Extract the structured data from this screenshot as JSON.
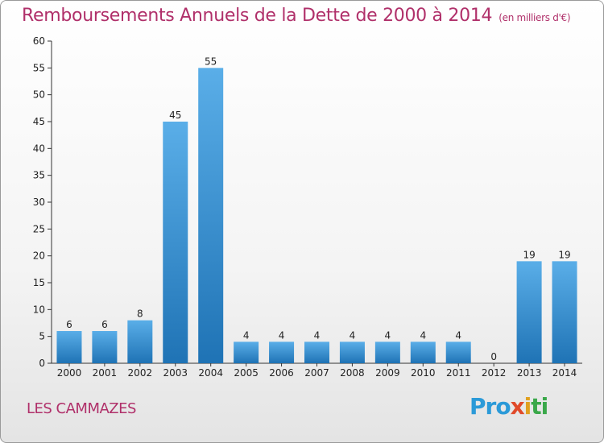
{
  "title": "Remboursements Annuels de la Dette de 2000 à 2014",
  "subtitle": "(en milliers d'€)",
  "commune": "LES CAMMAZES",
  "logo": {
    "parts": [
      "Pro",
      "x",
      "i",
      "ti"
    ]
  },
  "colors": {
    "title": "#b0306a",
    "bar_top": "#5aaee8",
    "bar_bottom": "#1f73b5"
  },
  "chart_data": {
    "type": "bar",
    "title": "Remboursements Annuels de la Dette de 2000 à 2014",
    "subtitle": "(en milliers d'€)",
    "categories": [
      "2000",
      "2001",
      "2002",
      "2003",
      "2004",
      "2005",
      "2006",
      "2007",
      "2008",
      "2009",
      "2010",
      "2011",
      "2012",
      "2013",
      "2014"
    ],
    "values": [
      6,
      6,
      8,
      45,
      55,
      4,
      4,
      4,
      4,
      4,
      4,
      4,
      0,
      19,
      19
    ],
    "ylim": [
      0,
      60
    ],
    "yticks": [
      0,
      5,
      10,
      15,
      20,
      25,
      30,
      35,
      40,
      45,
      50,
      55,
      60
    ],
    "grid": false,
    "data_labels": true
  }
}
